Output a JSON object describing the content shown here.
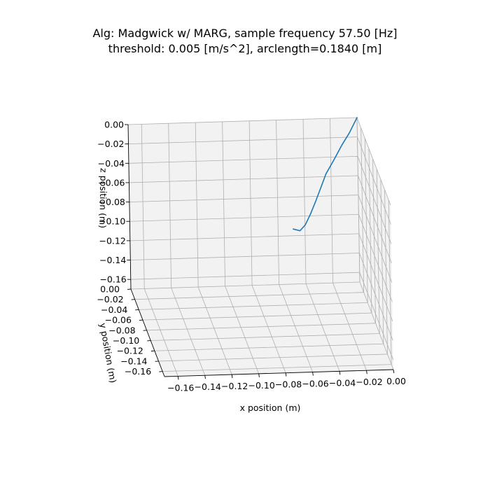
{
  "title_line1": "Alg: Madgwick w/ MARG, sample frequency 57.50 [Hz]",
  "title_line2": "threshold: 0.005 [m/s^2], arclength=0.1840 [m]",
  "colors": {
    "pane": "#f2f2f2",
    "grid": "#b0b0b0",
    "series": "#1f77b4"
  },
  "chart_data": {
    "type": "line",
    "projection": "3d",
    "xlabel": "x position (m)",
    "ylabel": "y position (m)",
    "zlabel": "z position (m)",
    "xlim": [
      -0.17,
      0.0
    ],
    "ylim": [
      -0.17,
      0.0
    ],
    "zlim": [
      -0.17,
      0.0
    ],
    "x_ticks": [
      "−0.16",
      "−0.14",
      "−0.12",
      "−0.10",
      "−0.08",
      "−0.06",
      "−0.04",
      "−0.02",
      "0.00"
    ],
    "y_ticks": [
      "0.00",
      "−0.02",
      "−0.04",
      "−0.06",
      "−0.08",
      "−0.10",
      "−0.12",
      "−0.14",
      "−0.16"
    ],
    "z_ticks": [
      "0.00",
      "−0.02",
      "−0.04",
      "−0.06",
      "−0.08",
      "−0.10",
      "−0.12",
      "−0.14",
      "−0.16"
    ],
    "grid": true,
    "series": [
      {
        "x": [
          0.0,
          -0.006,
          -0.012,
          -0.018,
          -0.024,
          -0.028,
          -0.032,
          -0.036,
          -0.04,
          -0.044,
          -0.049
        ],
        "y": [
          0.0,
          -0.001,
          -0.001,
          -0.002,
          -0.002,
          -0.002,
          -0.002,
          -0.002,
          -0.002,
          -0.002,
          -0.002
        ],
        "z": [
          0.0,
          -0.015,
          -0.028,
          -0.042,
          -0.056,
          -0.07,
          -0.084,
          -0.097,
          -0.108,
          -0.114,
          -0.112
        ]
      }
    ]
  }
}
